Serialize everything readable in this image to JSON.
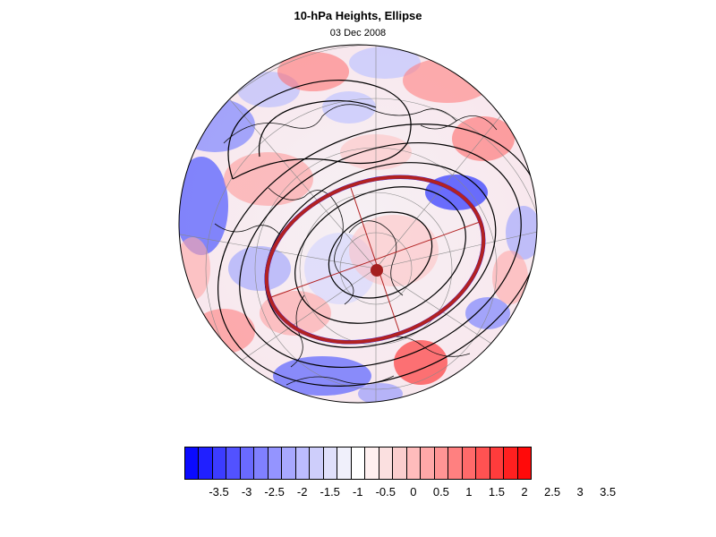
{
  "header": {
    "title": "10-hPa Heights, Ellipse",
    "date": "03 Dec 2008"
  },
  "map": {
    "projection": "polar-stereographic-north",
    "field": "10-hPa height anomaly",
    "ellipse_color": "#b22222",
    "center_dot_color": "#a52020",
    "contour_color": "#000000"
  },
  "colorbar": {
    "labels": [
      "-3.5",
      "-3",
      "-2.5",
      "-2",
      "-1.5",
      "-1",
      "-0.5",
      "0",
      "0.5",
      "1",
      "1.5",
      "2",
      "2.5",
      "3",
      "3.5"
    ],
    "colors": [
      "#0a0aff",
      "#2020ff",
      "#3c3cff",
      "#5252ff",
      "#6a6aff",
      "#8080ff",
      "#9494ff",
      "#a8a8ff",
      "#bcbcff",
      "#cecefb",
      "#e0e0fb",
      "#f0f0fb",
      "#ffffff",
      "#fff0f0",
      "#fbe0e0",
      "#fbcece",
      "#ffbcbc",
      "#ffa8a8",
      "#ff9494",
      "#ff8080",
      "#ff6a6a",
      "#ff5252",
      "#ff3c3c",
      "#ff2020",
      "#ff0a0a"
    ]
  }
}
